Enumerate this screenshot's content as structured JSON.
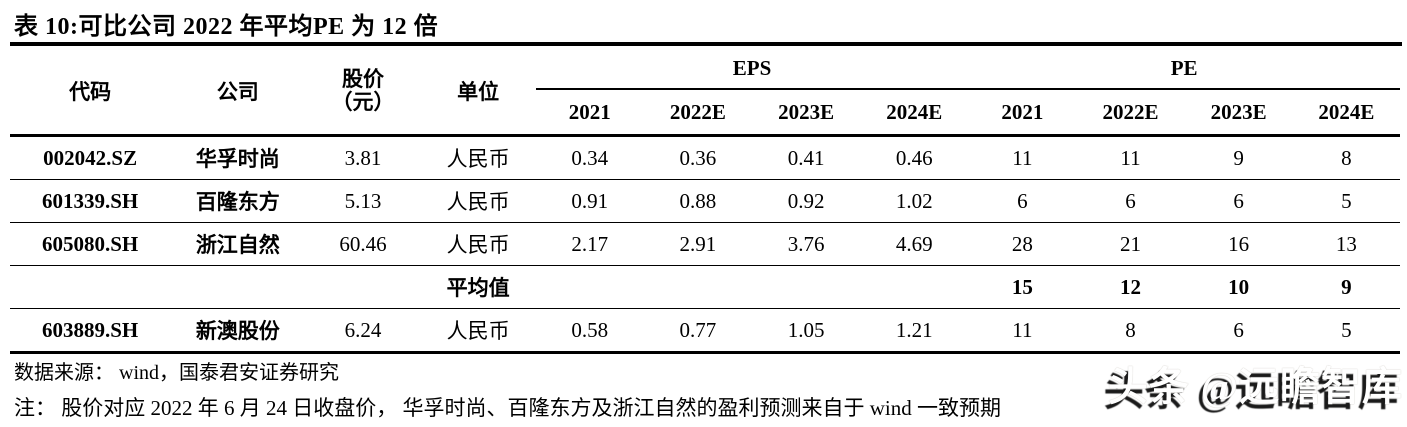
{
  "title": "表 10:可比公司 2022 年平均PE 为 12 倍",
  "table": {
    "headers": {
      "code": "代码",
      "company": "公司",
      "price_line1": "股价",
      "price_line2": "（元）",
      "unit": "单位",
      "eps_group": "EPS",
      "pe_group": "PE",
      "eps_years": [
        "2021",
        "2022E",
        "2023E",
        "2024E"
      ],
      "pe_years": [
        "2021",
        "2022E",
        "2023E",
        "2024E"
      ]
    },
    "rows": [
      {
        "code": "002042.SZ",
        "company": "华孚时尚",
        "price": "3.81",
        "unit": "人民币",
        "eps": [
          "0.34",
          "0.36",
          "0.41",
          "0.46"
        ],
        "pe": [
          "11",
          "11",
          "9",
          "8"
        ],
        "is_average": false
      },
      {
        "code": "601339.SH",
        "company": "百隆东方",
        "price": "5.13",
        "unit": "人民币",
        "eps": [
          "0.91",
          "0.88",
          "0.92",
          "1.02"
        ],
        "pe": [
          "6",
          "6",
          "6",
          "5"
        ],
        "is_average": false
      },
      {
        "code": "605080.SH",
        "company": "浙江自然",
        "price": "60.46",
        "unit": "人民币",
        "eps": [
          "2.17",
          "2.91",
          "3.76",
          "4.69"
        ],
        "pe": [
          "28",
          "21",
          "16",
          "13"
        ],
        "is_average": false
      },
      {
        "code": "",
        "company": "",
        "price": "",
        "unit": "平均值",
        "eps": [
          "",
          "",
          "",
          ""
        ],
        "pe": [
          "15",
          "12",
          "10",
          "9"
        ],
        "is_average": true
      },
      {
        "code": "603889.SH",
        "company": "新澳股份",
        "price": "6.24",
        "unit": "人民币",
        "eps": [
          "0.58",
          "0.77",
          "1.05",
          "1.21"
        ],
        "pe": [
          "11",
          "8",
          "6",
          "5"
        ],
        "is_average": false
      }
    ]
  },
  "footer": {
    "source": "数据来源： wind，国泰君安证券研究",
    "note": "注： 股价对应 2022 年 6 月 24 日收盘价， 华孚时尚、百隆东方及浙江自然的盈利预测来自于 wind 一致预期"
  },
  "watermark": "头条 @远瞻智库",
  "colors": {
    "text": "#000000",
    "rule": "#000000",
    "background": "#ffffff",
    "watermark_shadow": "#1a1a1a"
  }
}
